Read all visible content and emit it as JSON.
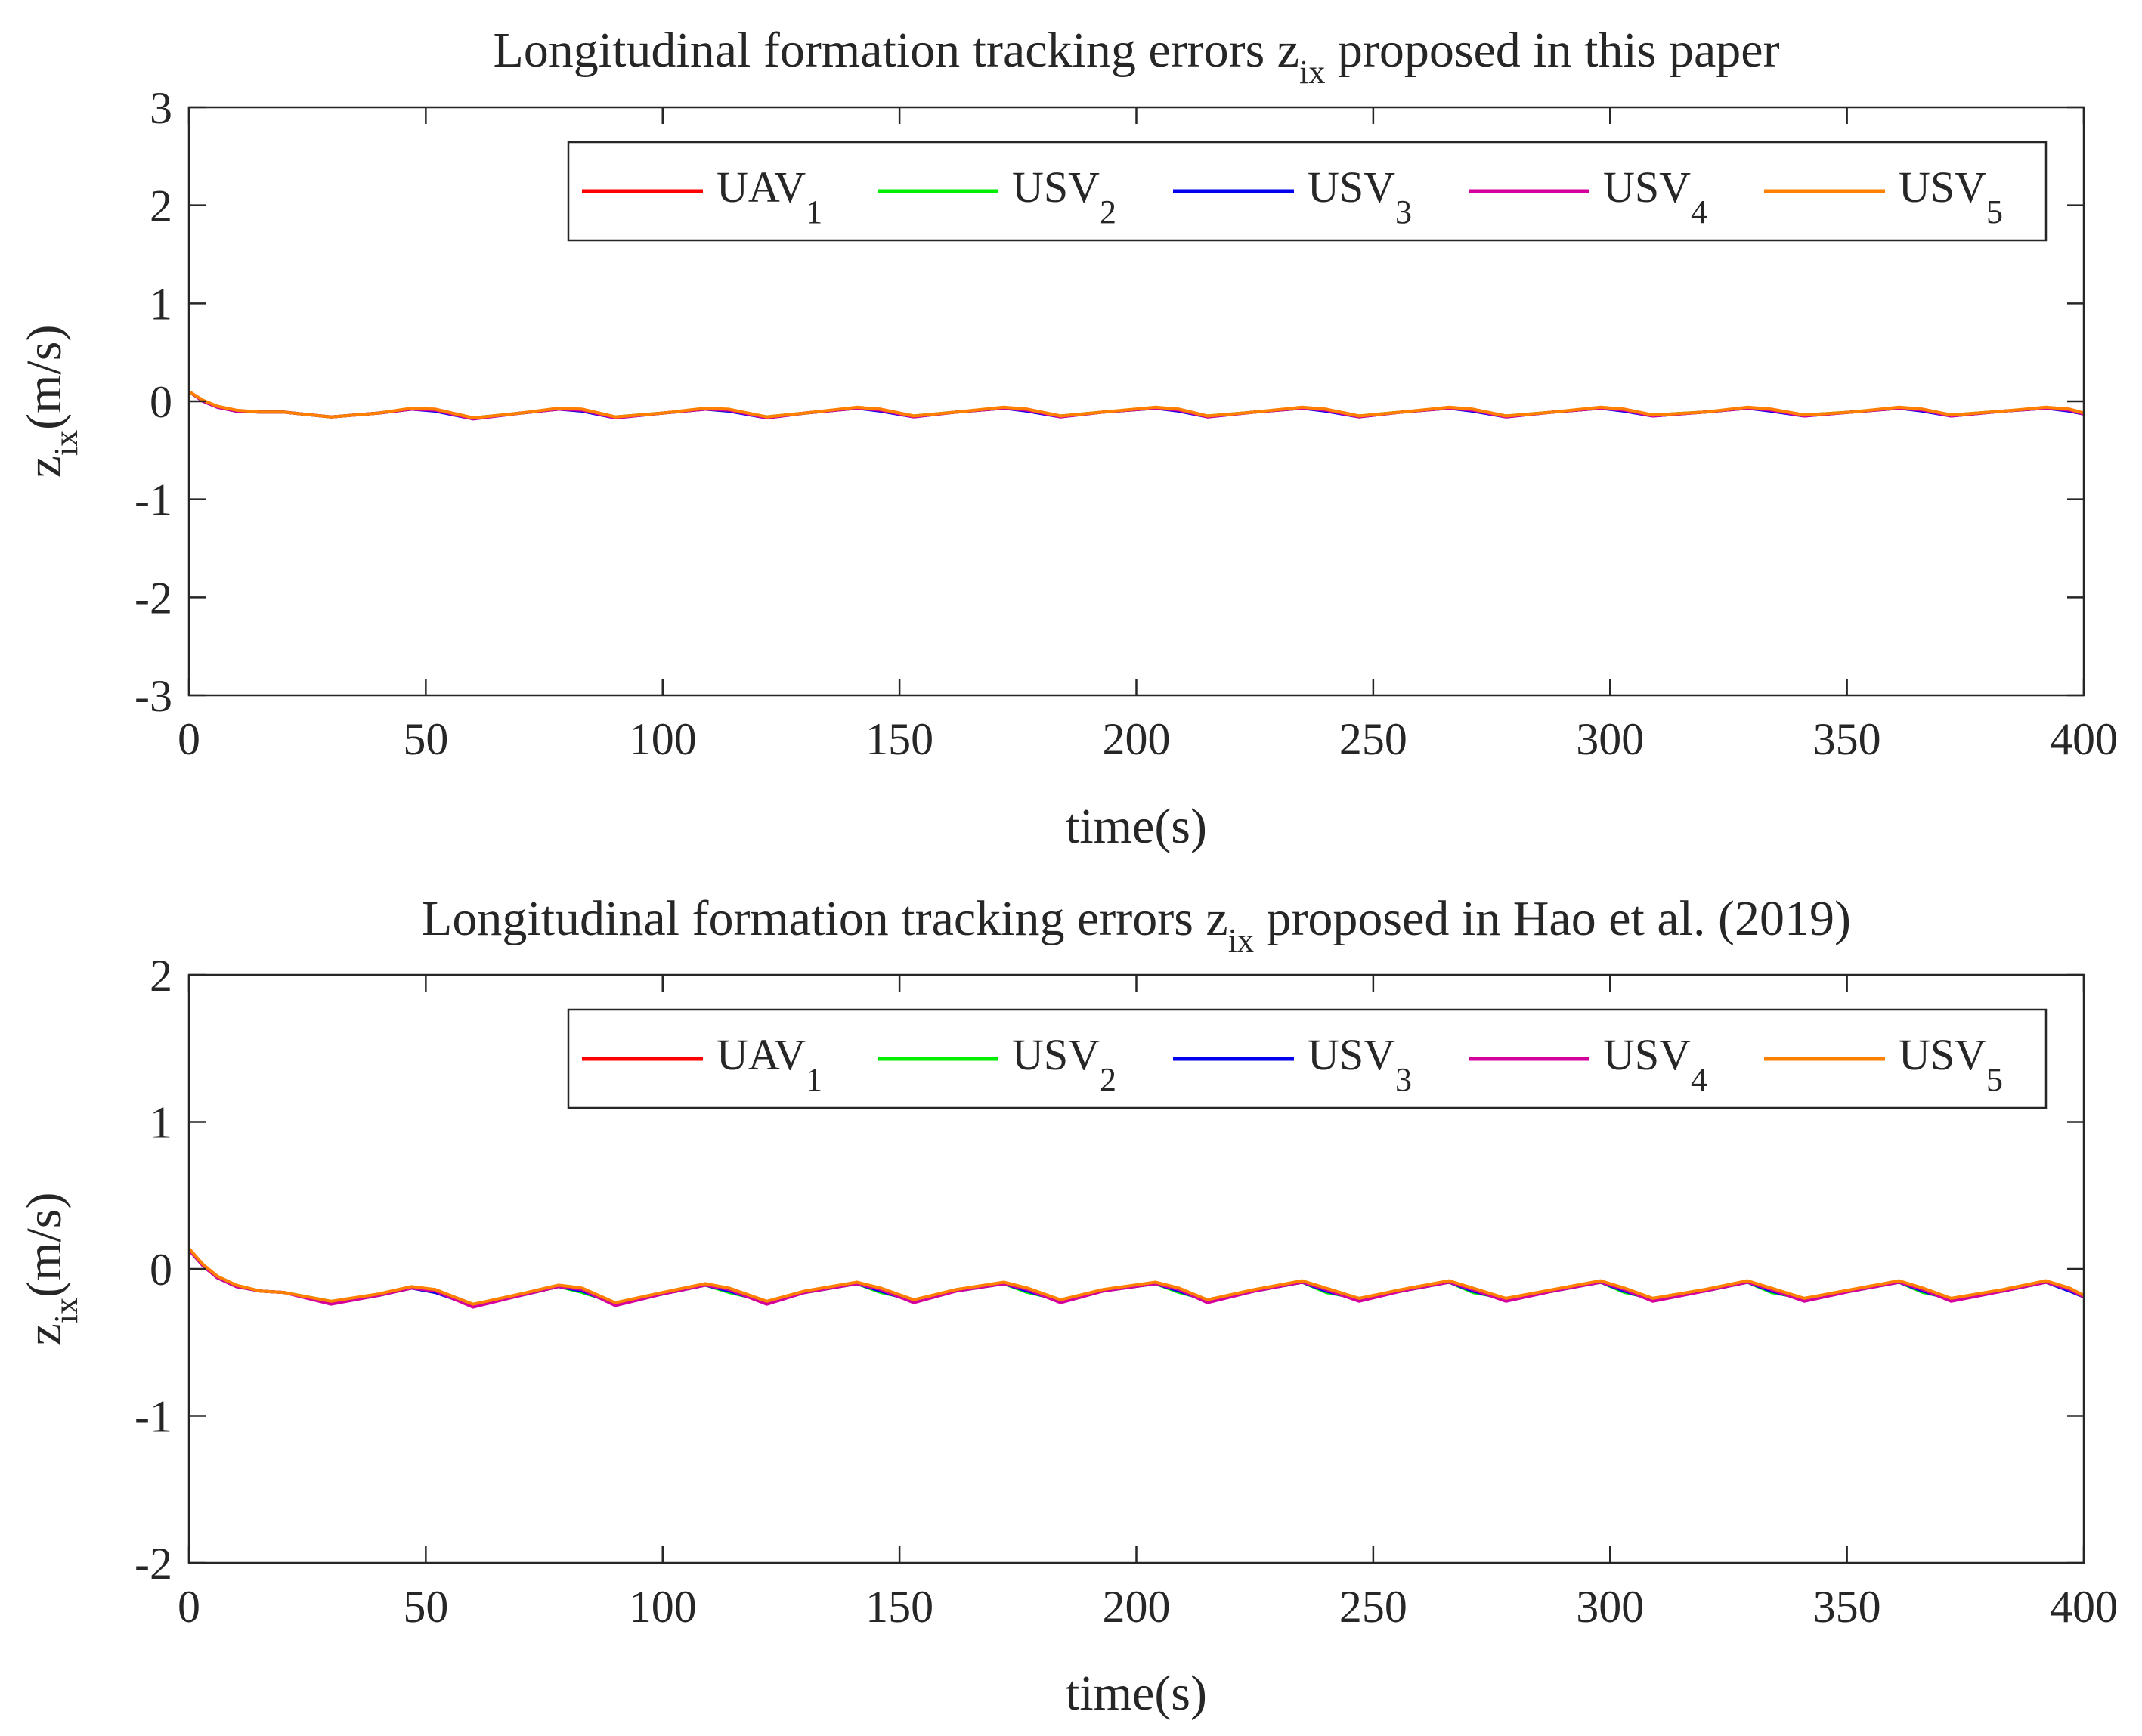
{
  "chart_data": [
    {
      "type": "line",
      "title": {
        "prefix": "Longitudinal formation tracking errors z",
        "sub": "ix",
        "suffix": " proposed in this paper"
      },
      "xlabel": "time(s)",
      "ylabel": {
        "base": "z",
        "sub": "ix",
        "rest": "(m/s)"
      },
      "xlim": [
        0,
        400
      ],
      "ylim": [
        -3,
        3
      ],
      "xticks": [
        0,
        50,
        100,
        150,
        200,
        250,
        300,
        350,
        400
      ],
      "xtick_labels": [
        "0",
        "50",
        "100",
        "150",
        "200",
        "250",
        "300",
        "350",
        "400"
      ],
      "yticks": [
        -3,
        -2,
        -1,
        0,
        1,
        2,
        3
      ],
      "ytick_labels": [
        "-3",
        "-2",
        "-1",
        "0",
        "1",
        "2",
        "3"
      ],
      "grid": false,
      "legend_position": "top-right",
      "x": [
        0,
        3,
        6,
        10,
        15,
        20,
        30,
        40,
        47,
        52,
        60,
        70,
        78,
        83,
        90,
        100,
        109,
        114,
        122,
        130,
        141,
        146,
        153,
        162,
        172,
        177,
        184,
        193,
        204,
        209,
        215,
        225,
        235,
        240,
        247,
        256,
        266,
        271,
        278,
        288,
        298,
        303,
        309,
        320,
        329,
        334,
        341,
        351,
        361,
        366,
        372,
        383,
        392,
        397,
        400
      ],
      "series": [
        {
          "name": "UAV",
          "sub": "1",
          "color": "#ff0000",
          "values": [
            0.1,
            0.0,
            -0.06,
            -0.1,
            -0.11,
            -0.11,
            -0.16,
            -0.12,
            -0.08,
            -0.08,
            -0.17,
            -0.12,
            -0.08,
            -0.08,
            -0.16,
            -0.12,
            -0.08,
            -0.09,
            -0.16,
            -0.12,
            -0.07,
            -0.08,
            -0.15,
            -0.11,
            -0.07,
            -0.08,
            -0.15,
            -0.11,
            -0.07,
            -0.08,
            -0.15,
            -0.11,
            -0.07,
            -0.08,
            -0.15,
            -0.11,
            -0.07,
            -0.08,
            -0.15,
            -0.11,
            -0.07,
            -0.08,
            -0.14,
            -0.11,
            -0.07,
            -0.08,
            -0.14,
            -0.11,
            -0.07,
            -0.08,
            -0.14,
            -0.1,
            -0.07,
            -0.08,
            -0.12
          ]
        },
        {
          "name": "USV",
          "sub": "2",
          "color": "#00ee00",
          "values": [
            0.1,
            0.0,
            -0.06,
            -0.1,
            -0.11,
            -0.11,
            -0.16,
            -0.12,
            -0.08,
            -0.09,
            -0.17,
            -0.12,
            -0.08,
            -0.09,
            -0.16,
            -0.12,
            -0.08,
            -0.1,
            -0.16,
            -0.12,
            -0.07,
            -0.09,
            -0.15,
            -0.11,
            -0.07,
            -0.09,
            -0.15,
            -0.11,
            -0.07,
            -0.09,
            -0.15,
            -0.11,
            -0.07,
            -0.09,
            -0.15,
            -0.11,
            -0.07,
            -0.09,
            -0.15,
            -0.11,
            -0.07,
            -0.09,
            -0.14,
            -0.11,
            -0.07,
            -0.09,
            -0.14,
            -0.11,
            -0.07,
            -0.09,
            -0.14,
            -0.1,
            -0.07,
            -0.09,
            -0.12
          ]
        },
        {
          "name": "USV",
          "sub": "3",
          "color": "#0000ee",
          "values": [
            0.1,
            0.0,
            -0.06,
            -0.1,
            -0.11,
            -0.11,
            -0.16,
            -0.12,
            -0.08,
            -0.1,
            -0.18,
            -0.12,
            -0.08,
            -0.1,
            -0.17,
            -0.12,
            -0.08,
            -0.1,
            -0.17,
            -0.12,
            -0.07,
            -0.1,
            -0.16,
            -0.11,
            -0.07,
            -0.1,
            -0.16,
            -0.11,
            -0.07,
            -0.1,
            -0.16,
            -0.11,
            -0.07,
            -0.1,
            -0.16,
            -0.11,
            -0.07,
            -0.1,
            -0.16,
            -0.11,
            -0.07,
            -0.1,
            -0.15,
            -0.11,
            -0.07,
            -0.1,
            -0.15,
            -0.11,
            -0.07,
            -0.1,
            -0.15,
            -0.1,
            -0.07,
            -0.1,
            -0.13
          ]
        },
        {
          "name": "USV",
          "sub": "4",
          "color": "#d4009e",
          "values": [
            0.1,
            0.0,
            -0.06,
            -0.1,
            -0.11,
            -0.11,
            -0.16,
            -0.12,
            -0.08,
            -0.09,
            -0.18,
            -0.12,
            -0.08,
            -0.09,
            -0.17,
            -0.12,
            -0.08,
            -0.09,
            -0.17,
            -0.12,
            -0.07,
            -0.09,
            -0.16,
            -0.11,
            -0.07,
            -0.09,
            -0.16,
            -0.11,
            -0.07,
            -0.09,
            -0.16,
            -0.11,
            -0.07,
            -0.09,
            -0.16,
            -0.11,
            -0.07,
            -0.09,
            -0.16,
            -0.11,
            -0.07,
            -0.09,
            -0.15,
            -0.11,
            -0.07,
            -0.09,
            -0.15,
            -0.11,
            -0.07,
            -0.09,
            -0.15,
            -0.1,
            -0.07,
            -0.09,
            -0.13
          ]
        },
        {
          "name": "USV",
          "sub": "5",
          "color": "#ff8000",
          "values": [
            0.1,
            0.01,
            -0.05,
            -0.09,
            -0.11,
            -0.11,
            -0.16,
            -0.12,
            -0.07,
            -0.08,
            -0.17,
            -0.12,
            -0.07,
            -0.08,
            -0.16,
            -0.12,
            -0.07,
            -0.08,
            -0.16,
            -0.12,
            -0.06,
            -0.08,
            -0.15,
            -0.11,
            -0.06,
            -0.08,
            -0.15,
            -0.11,
            -0.06,
            -0.08,
            -0.15,
            -0.11,
            -0.06,
            -0.08,
            -0.15,
            -0.11,
            -0.06,
            -0.08,
            -0.15,
            -0.11,
            -0.06,
            -0.08,
            -0.14,
            -0.11,
            -0.06,
            -0.08,
            -0.14,
            -0.11,
            -0.06,
            -0.08,
            -0.14,
            -0.1,
            -0.06,
            -0.08,
            -0.12
          ]
        }
      ]
    },
    {
      "type": "line",
      "title": {
        "prefix": "Longitudinal formation tracking errors z",
        "sub": "ix",
        "suffix": " proposed in Hao et al. (2019)"
      },
      "xlabel": "time(s)",
      "ylabel": {
        "base": "z",
        "sub": "ix",
        "rest": "(m/s)"
      },
      "xlim": [
        0,
        400
      ],
      "ylim": [
        -2,
        2
      ],
      "xticks": [
        0,
        50,
        100,
        150,
        200,
        250,
        300,
        350,
        400
      ],
      "xtick_labels": [
        "0",
        "50",
        "100",
        "150",
        "200",
        "250",
        "300",
        "350",
        "400"
      ],
      "yticks": [
        -2,
        -1,
        0,
        1,
        2
      ],
      "ytick_labels": [
        "-2",
        "-1",
        "0",
        "1",
        "2"
      ],
      "grid": false,
      "legend_position": "top-right",
      "x": [
        0,
        3,
        6,
        10,
        15,
        20,
        30,
        40,
        47,
        52,
        60,
        70,
        78,
        83,
        90,
        100,
        109,
        114,
        122,
        130,
        141,
        146,
        153,
        162,
        172,
        177,
        184,
        193,
        204,
        209,
        215,
        225,
        235,
        240,
        247,
        256,
        266,
        271,
        278,
        288,
        298,
        303,
        309,
        320,
        329,
        334,
        341,
        351,
        361,
        366,
        372,
        383,
        392,
        397,
        400
      ],
      "series": [
        {
          "name": "UAV",
          "sub": "1",
          "color": "#ff0000",
          "values": [
            0.13,
            0.02,
            -0.06,
            -0.12,
            -0.15,
            -0.16,
            -0.23,
            -0.18,
            -0.13,
            -0.15,
            -0.25,
            -0.18,
            -0.12,
            -0.14,
            -0.24,
            -0.17,
            -0.11,
            -0.14,
            -0.23,
            -0.16,
            -0.1,
            -0.14,
            -0.22,
            -0.15,
            -0.1,
            -0.14,
            -0.22,
            -0.15,
            -0.1,
            -0.14,
            -0.22,
            -0.15,
            -0.09,
            -0.14,
            -0.21,
            -0.15,
            -0.09,
            -0.14,
            -0.21,
            -0.15,
            -0.09,
            -0.14,
            -0.21,
            -0.15,
            -0.09,
            -0.14,
            -0.21,
            -0.15,
            -0.09,
            -0.14,
            -0.21,
            -0.15,
            -0.09,
            -0.14,
            -0.19
          ]
        },
        {
          "name": "USV",
          "sub": "2",
          "color": "#00ee00",
          "values": [
            0.13,
            0.02,
            -0.06,
            -0.12,
            -0.15,
            -0.16,
            -0.22,
            -0.18,
            -0.13,
            -0.16,
            -0.24,
            -0.18,
            -0.12,
            -0.16,
            -0.23,
            -0.17,
            -0.11,
            -0.16,
            -0.22,
            -0.16,
            -0.1,
            -0.16,
            -0.21,
            -0.15,
            -0.1,
            -0.16,
            -0.21,
            -0.15,
            -0.1,
            -0.16,
            -0.21,
            -0.15,
            -0.09,
            -0.16,
            -0.2,
            -0.15,
            -0.09,
            -0.16,
            -0.2,
            -0.15,
            -0.09,
            -0.16,
            -0.2,
            -0.15,
            -0.09,
            -0.16,
            -0.2,
            -0.15,
            -0.09,
            -0.16,
            -0.2,
            -0.15,
            -0.09,
            -0.15,
            -0.19
          ]
        },
        {
          "name": "USV",
          "sub": "3",
          "color": "#0000ee",
          "values": [
            0.13,
            0.02,
            -0.06,
            -0.12,
            -0.15,
            -0.16,
            -0.23,
            -0.18,
            -0.13,
            -0.16,
            -0.25,
            -0.18,
            -0.12,
            -0.15,
            -0.24,
            -0.17,
            -0.11,
            -0.15,
            -0.23,
            -0.16,
            -0.1,
            -0.15,
            -0.22,
            -0.15,
            -0.1,
            -0.15,
            -0.22,
            -0.15,
            -0.1,
            -0.15,
            -0.22,
            -0.15,
            -0.09,
            -0.15,
            -0.21,
            -0.15,
            -0.09,
            -0.15,
            -0.21,
            -0.15,
            -0.09,
            -0.15,
            -0.21,
            -0.15,
            -0.09,
            -0.15,
            -0.21,
            -0.15,
            -0.09,
            -0.15,
            -0.21,
            -0.15,
            -0.09,
            -0.15,
            -0.19
          ]
        },
        {
          "name": "USV",
          "sub": "4",
          "color": "#d4009e",
          "values": [
            0.13,
            0.02,
            -0.06,
            -0.12,
            -0.15,
            -0.16,
            -0.24,
            -0.18,
            -0.13,
            -0.15,
            -0.26,
            -0.18,
            -0.12,
            -0.14,
            -0.25,
            -0.17,
            -0.11,
            -0.14,
            -0.24,
            -0.16,
            -0.1,
            -0.14,
            -0.23,
            -0.15,
            -0.1,
            -0.14,
            -0.23,
            -0.15,
            -0.1,
            -0.14,
            -0.23,
            -0.15,
            -0.09,
            -0.14,
            -0.22,
            -0.15,
            -0.09,
            -0.14,
            -0.22,
            -0.15,
            -0.09,
            -0.14,
            -0.22,
            -0.15,
            -0.09,
            -0.14,
            -0.22,
            -0.15,
            -0.09,
            -0.14,
            -0.22,
            -0.15,
            -0.09,
            -0.14,
            -0.19
          ]
        },
        {
          "name": "USV",
          "sub": "5",
          "color": "#ff8000",
          "values": [
            0.14,
            0.03,
            -0.05,
            -0.11,
            -0.15,
            -0.16,
            -0.22,
            -0.17,
            -0.12,
            -0.14,
            -0.24,
            -0.17,
            -0.11,
            -0.13,
            -0.23,
            -0.16,
            -0.1,
            -0.13,
            -0.22,
            -0.15,
            -0.09,
            -0.13,
            -0.21,
            -0.14,
            -0.09,
            -0.13,
            -0.21,
            -0.14,
            -0.09,
            -0.13,
            -0.21,
            -0.14,
            -0.08,
            -0.13,
            -0.2,
            -0.14,
            -0.08,
            -0.13,
            -0.2,
            -0.14,
            -0.08,
            -0.13,
            -0.2,
            -0.14,
            -0.08,
            -0.13,
            -0.2,
            -0.14,
            -0.08,
            -0.13,
            -0.2,
            -0.14,
            -0.08,
            -0.13,
            -0.18
          ]
        }
      ]
    }
  ]
}
